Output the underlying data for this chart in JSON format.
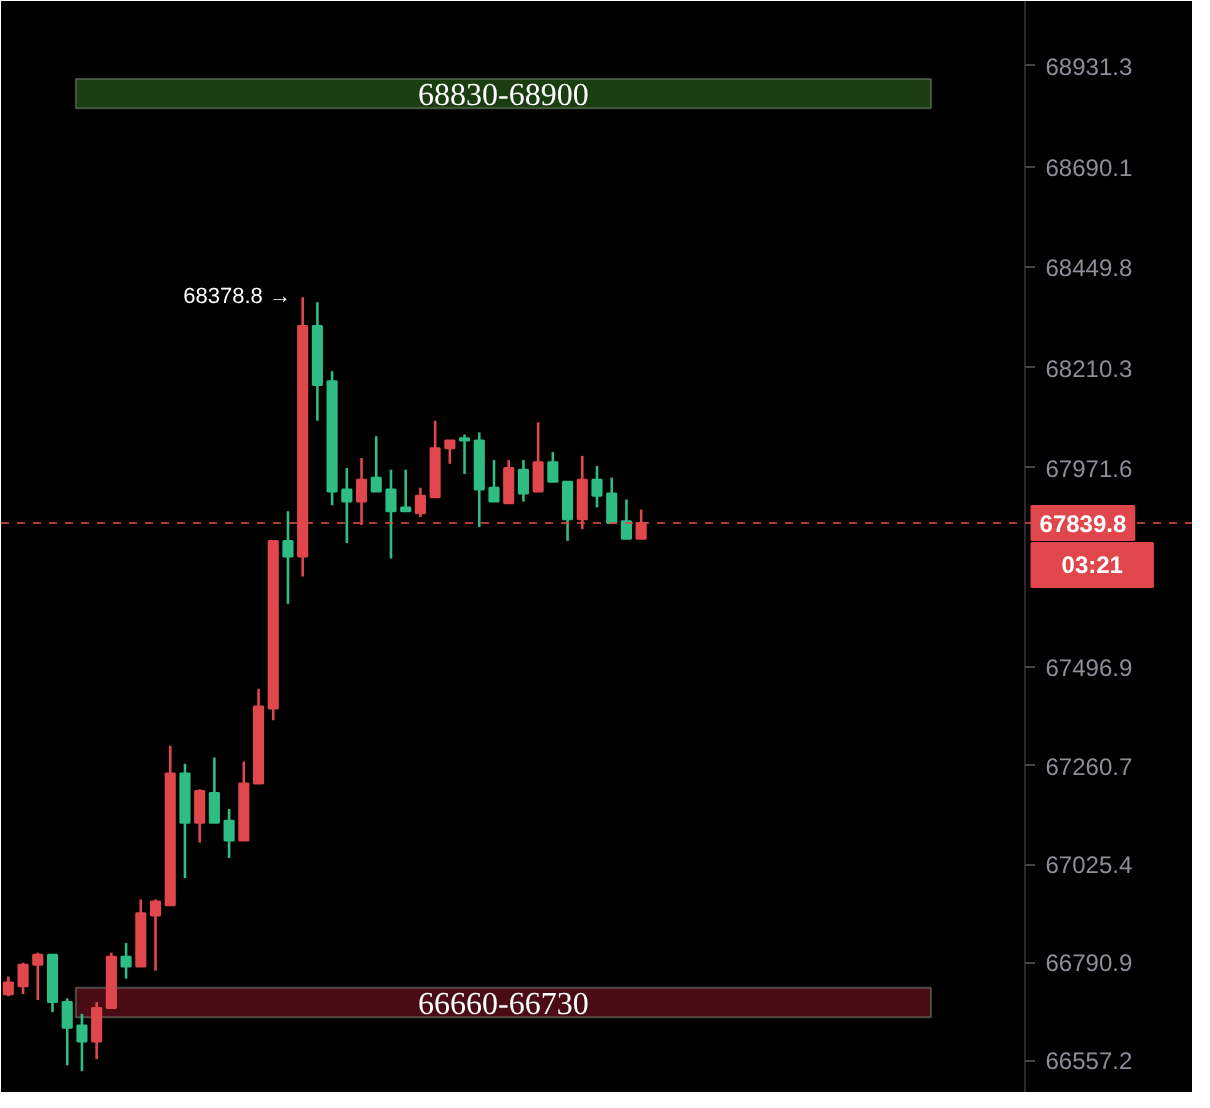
{
  "chart_data": {
    "type": "candlestick",
    "categories": [
      null,
      null,
      null,
      null,
      null,
      null,
      null,
      null,
      null,
      null,
      null,
      null,
      null,
      null,
      null,
      null,
      null,
      null,
      null,
      null,
      null,
      null,
      null,
      null,
      null,
      null,
      null,
      null,
      null,
      null,
      null,
      null,
      null,
      null,
      null,
      null,
      null,
      null,
      null,
      null,
      null,
      null,
      null,
      null,
      null,
      null,
      null,
      null,
      null,
      null,
      null,
      null,
      null,
      null,
      null,
      null,
      null,
      null,
      null,
      null,
      null,
      null,
      null,
      null,
      null,
      null,
      null,
      null,
      null,
      null,
      null,
      null,
      null,
      null,
      null,
      null,
      null,
      null,
      null,
      null,
      null
    ],
    "ohlc": [
      [
        66715,
        66757,
        66710,
        66743
      ],
      [
        66734,
        66790,
        66715,
        66785
      ],
      [
        66785,
        66814,
        66701,
        66809
      ],
      [
        66809,
        66809,
        66672,
        66696
      ],
      [
        66696,
        66705,
        66545,
        66635
      ],
      [
        66640,
        66668,
        66531,
        66602
      ],
      [
        66602,
        66696,
        66560,
        66682
      ],
      [
        66682,
        66814,
        66682,
        66804
      ],
      [
        66804,
        66837,
        66752,
        66781
      ],
      [
        66781,
        66941,
        66781,
        66908
      ],
      [
        66903,
        66941,
        66771,
        66936
      ],
      [
        66927,
        67308,
        66927,
        67242
      ],
      [
        67242,
        67265,
        66992,
        67124
      ],
      [
        67124,
        67204,
        67077,
        67200
      ],
      [
        67195,
        67280,
        67124,
        67124
      ],
      [
        67129,
        67157,
        67040,
        67082
      ],
      [
        67082,
        67270,
        67082,
        67218
      ],
      [
        67218,
        67444,
        67218,
        67402
      ],
      [
        67397,
        67797,
        67369,
        67797
      ],
      [
        67797,
        67868,
        67647,
        67760
      ],
      [
        67760,
        68378.8,
        67712,
        68310
      ],
      [
        68310,
        68367,
        68084,
        68169
      ],
      [
        68178,
        68202,
        67882,
        67915
      ],
      [
        67920,
        67971,
        67792,
        67891
      ],
      [
        67891,
        67995,
        67835,
        67943
      ],
      [
        67948,
        68047,
        67915,
        67915
      ],
      [
        67920,
        67967,
        67755,
        67868
      ],
      [
        67877,
        67967,
        67868,
        67868
      ],
      [
        67863,
        67924,
        67854,
        67905
      ],
      [
        67901,
        68084,
        67901,
        68018
      ],
      [
        68018,
        68037,
        67981,
        68037
      ],
      [
        68042,
        68051,
        67957,
        68037
      ],
      [
        68037,
        68056,
        67830,
        67920
      ],
      [
        67924,
        67990,
        67891,
        67891
      ],
      [
        67887,
        67990,
        67887,
        67971
      ],
      [
        67967,
        67990,
        67891,
        67910
      ],
      [
        67915,
        68080,
        67915,
        67985
      ],
      [
        67985,
        68009,
        67938,
        67938
      ],
      [
        67938,
        67938,
        67797,
        67849
      ],
      [
        67849,
        68000,
        67825,
        67943
      ],
      [
        67943,
        67976,
        67877,
        67905
      ],
      [
        67910,
        67948,
        67840,
        67840
      ],
      [
        67844,
        67896,
        67802,
        67802
      ],
      [
        67802,
        67872,
        67802,
        67839.8
      ],
      null,
      null,
      null,
      null,
      null,
      null,
      null,
      null,
      null,
      null,
      null,
      null,
      null,
      null,
      null,
      null,
      null,
      null,
      null,
      null,
      null,
      null,
      null,
      null,
      null,
      null,
      null,
      null,
      null,
      null,
      null,
      null,
      null,
      null,
      null,
      null,
      null
    ],
    "colors": [
      "#e0474c",
      "#e0474c",
      "#e0474c",
      "#2ebd85",
      "#2ebd85",
      "#2ebd85",
      "#e0474c",
      "#e0474c",
      "#2ebd85",
      "#e0474c",
      "#e0474c",
      "#e0474c",
      "#2ebd85",
      "#e0474c",
      "#2ebd85",
      "#2ebd85",
      "#e0474c",
      "#e0474c",
      "#e0474c",
      "#2ebd85",
      "#e0474c",
      "#2ebd85",
      "#2ebd85",
      "#2ebd85",
      "#e0474c",
      "#2ebd85",
      "#2ebd85",
      "#2ebd85",
      "#e0474c",
      "#e0474c",
      "#e0474c",
      "#2ebd85",
      "#2ebd85",
      "#2ebd85",
      "#e0474c",
      "#2ebd85",
      "#e0474c",
      "#2ebd85",
      "#2ebd85",
      "#e0474c",
      "#2ebd85",
      "#2ebd85",
      "#2ebd85",
      "#e0474c",
      null,
      null,
      null,
      null,
      null,
      null,
      null,
      null,
      null,
      null,
      null,
      null,
      null,
      null,
      null,
      null,
      null,
      null,
      null,
      null,
      null,
      null,
      null,
      null,
      null,
      null,
      null,
      null,
      null,
      null,
      null,
      null,
      null,
      null,
      null,
      null,
      null
    ],
    "ylim": [
      66479,
      69086
    ],
    "yticks": [
      66557.2,
      66790.9,
      67025.4,
      67260.7,
      67496.9,
      67971.6,
      68210.3,
      68449.8,
      68690.1,
      68931.3
    ],
    "grid": false,
    "ref_lines": [
      {
        "axis": "y",
        "value": 67839.8,
        "label": "67839.8",
        "color": "#e0474c",
        "line_style": "dashed"
      }
    ],
    "bands": [
      {
        "axis": "y",
        "from": 68830,
        "to": 68900,
        "label": "68830-68900",
        "color": "#1a3d12"
      },
      {
        "axis": "y",
        "from": 66660,
        "to": 66730,
        "label": "66660-66730",
        "color": "#4a0c14"
      }
    ],
    "annotations": [
      "68378.8 →",
      "03:21"
    ]
  }
}
